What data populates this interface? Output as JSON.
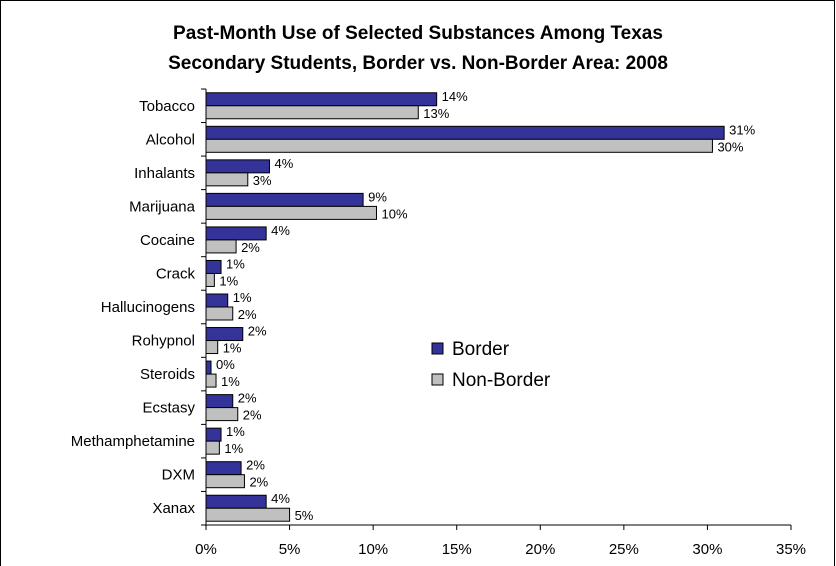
{
  "chart_data": {
    "type": "bar",
    "orientation": "horizontal",
    "title_lines": [
      "Past-Month Use of Selected Substances Among Texas",
      "Secondary Students,  Border vs. Non-Border Area: 2008"
    ],
    "categories": [
      "Tobacco",
      "Alcohol",
      "Inhalants",
      "Marijuana",
      "Cocaine",
      "Crack",
      "Hallucinogens",
      "Rohypnol",
      "Steroids",
      "Ecstasy",
      "Methamphetamine",
      "DXM",
      "Xanax"
    ],
    "series": [
      {
        "name": "Border",
        "color": "#333399",
        "values": [
          13.8,
          31.0,
          3.8,
          9.4,
          3.6,
          0.9,
          1.3,
          2.2,
          0.3,
          1.6,
          0.9,
          2.1,
          3.6
        ],
        "labels": [
          "14%",
          "31%",
          "4%",
          "9%",
          "4%",
          "1%",
          "1%",
          "2%",
          "0%",
          "2%",
          "1%",
          "2%",
          "4%"
        ]
      },
      {
        "name": "Non-Border",
        "color": "#C0C0C0",
        "values": [
          12.7,
          30.3,
          2.5,
          10.2,
          1.8,
          0.5,
          1.6,
          0.7,
          0.6,
          1.9,
          0.8,
          2.3,
          5.0
        ],
        "labels": [
          "13%",
          "30%",
          "3%",
          "10%",
          "2%",
          "1%",
          "2%",
          "1%",
          "1%",
          "2%",
          "1%",
          "2%",
          "5%"
        ]
      }
    ],
    "xlim": [
      0,
      35
    ],
    "xticks": [
      0,
      5,
      10,
      15,
      20,
      25,
      30,
      35
    ],
    "xtick_labels": [
      "0%",
      "5%",
      "10%",
      "15%",
      "20%",
      "25%",
      "30%",
      "35%"
    ],
    "grid": false,
    "legend_position": "center-right"
  }
}
